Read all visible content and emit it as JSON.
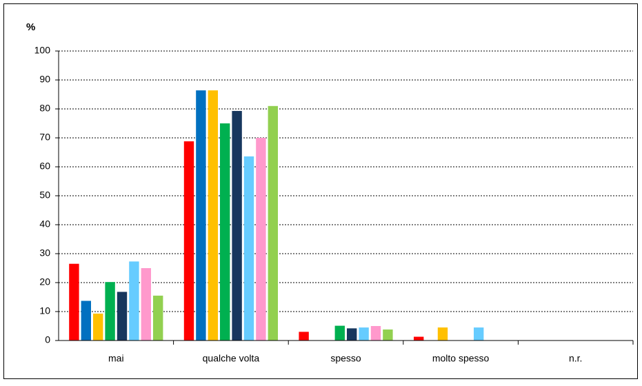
{
  "chart_data": {
    "type": "bar",
    "ylabel": "%",
    "categories": [
      "mai",
      "qualche volta",
      "spesso",
      "molto spesso",
      "n.r."
    ],
    "series": [
      {
        "color": "#ff0000",
        "values": [
          26.5,
          68.8,
          3,
          1.3,
          0
        ]
      },
      {
        "color": "#0070c0",
        "values": [
          13.7,
          86.4,
          0,
          0,
          0
        ]
      },
      {
        "color": "#ffc000",
        "values": [
          9.3,
          86.4,
          0,
          4.5,
          0
        ]
      },
      {
        "color": "#00b050",
        "values": [
          20.2,
          75,
          5.1,
          0,
          0
        ]
      },
      {
        "color": "#17375e",
        "values": [
          16.8,
          79.3,
          4.2,
          0,
          0
        ]
      },
      {
        "color": "#66ccff",
        "values": [
          27.3,
          63.6,
          4.5,
          4.5,
          0
        ]
      },
      {
        "color": "#ff99cc",
        "values": [
          25,
          70,
          5,
          0,
          0
        ]
      },
      {
        "color": "#92d050",
        "values": [
          15.5,
          81,
          3.8,
          0,
          0
        ]
      }
    ],
    "ylim": [
      0,
      100
    ],
    "yticks": [
      0,
      10,
      20,
      30,
      40,
      50,
      60,
      70,
      80,
      90,
      100
    ],
    "grid": true
  }
}
